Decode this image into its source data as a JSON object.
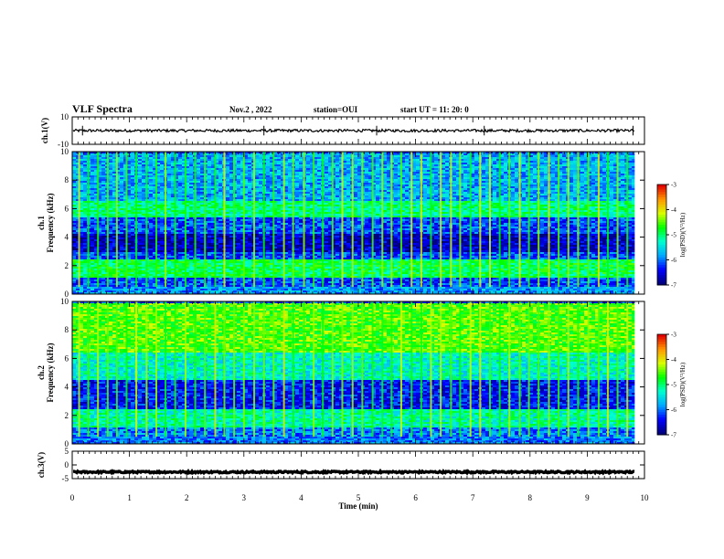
{
  "header": {
    "title": "VLF Spectra",
    "date": "Nov.2 , 2022",
    "station": "station=OUI",
    "start_ut": "start UT = 11: 20: 0"
  },
  "colors": {
    "colormap": [
      "#00007a",
      "#0000ff",
      "#00a8ff",
      "#00ffd0",
      "#00ff00",
      "#d8ff00",
      "#ff9800",
      "#e00000"
    ],
    "frame": "#000000",
    "waveform": "#000000"
  },
  "chart_data": [
    {
      "type": "line",
      "name": "ch1-waveform",
      "ylabel": "ch.1(V)",
      "ylim": [
        -10,
        10
      ],
      "yticks": [
        "10",
        "-10"
      ],
      "x_range_min": [
        0,
        9.83
      ],
      "trace_level_v": 0,
      "trace_amplitude_v": 1,
      "spike_times_min": [
        0.18,
        3.35,
        5.32,
        7.2,
        9.8
      ]
    },
    {
      "type": "heatmap",
      "name": "ch1-spectrogram",
      "ylabel": "ch.1\nFrequency (kHz)",
      "ylabel_line1": "ch.1",
      "ylabel_line2": "Frequency (kHz)",
      "ylim": [
        0,
        10
      ],
      "yticks": [
        "0",
        "2",
        "4",
        "6",
        "8",
        "10"
      ],
      "x_range_min": [
        0,
        9.83
      ],
      "bands_khz": [
        {
          "from": 0,
          "to": 0.6,
          "level": 0.28
        },
        {
          "from": 1.2,
          "to": 2.5,
          "level": 0.52
        },
        {
          "from": 3.0,
          "to": 4.3,
          "level": 0.08
        },
        {
          "from": 5.5,
          "to": 6.6,
          "level": 0.48
        },
        {
          "from": 6.6,
          "to": 10,
          "level": 0.3
        }
      ],
      "sferic_times_min": [
        0.12,
        0.28,
        0.45,
        0.62,
        0.78,
        0.95,
        1.12,
        1.3,
        1.47,
        1.63,
        1.8,
        1.98,
        2.15,
        2.32,
        2.5,
        2.66,
        2.83,
        3.0,
        3.18,
        3.35,
        3.52,
        3.7,
        3.86,
        4.05,
        4.22,
        4.38,
        4.55,
        4.72,
        4.9,
        5.07,
        5.25,
        5.42,
        5.58,
        5.75,
        5.93,
        6.1,
        6.27,
        6.44,
        6.62,
        6.78,
        6.96,
        7.13,
        7.3,
        7.47,
        7.64,
        7.82,
        7.98,
        8.15,
        8.33,
        8.5,
        8.67,
        8.84,
        9.02,
        9.2,
        9.36,
        9.53,
        9.7
      ],
      "colorbar": {
        "label": "log(PSD)(V²/Hz)",
        "min": -7,
        "max": -3,
        "ticks": [
          "-3",
          "-4",
          "-5",
          "-6",
          "-7"
        ]
      }
    },
    {
      "type": "heatmap",
      "name": "ch2-spectrogram",
      "ylabel": "ch.2\nFrequency (kHz)",
      "ylabel_line1": "ch.2",
      "ylabel_line2": "Frequency (kHz)",
      "ylim": [
        0,
        10
      ],
      "yticks": [
        "0",
        "2",
        "4",
        "6",
        "8",
        "10"
      ],
      "x_range_min": [
        0,
        9.83
      ],
      "bands_khz": [
        {
          "from": 0,
          "to": 1.2,
          "level": 0.25
        },
        {
          "from": 1.2,
          "to": 2.5,
          "level": 0.45
        },
        {
          "from": 2.5,
          "to": 4.5,
          "level": 0.15
        },
        {
          "from": 4.5,
          "to": 6.5,
          "level": 0.42
        },
        {
          "from": 6.5,
          "to": 10,
          "level": 0.62
        }
      ],
      "sferic_times_min": [
        0.12,
        0.28,
        0.45,
        0.62,
        0.78,
        0.95,
        1.12,
        1.3,
        1.47,
        1.63,
        1.8,
        1.98,
        2.15,
        2.32,
        2.5,
        2.66,
        2.83,
        3.0,
        3.18,
        3.35,
        3.52,
        3.7,
        3.86,
        4.05,
        4.22,
        4.38,
        4.55,
        4.72,
        4.9,
        5.07,
        5.25,
        5.42,
        5.58,
        5.75,
        5.93,
        6.1,
        6.27,
        6.44,
        6.62,
        6.78,
        6.96,
        7.13,
        7.3,
        7.47,
        7.64,
        7.82,
        7.98,
        8.15,
        8.33,
        8.5,
        8.67,
        8.84,
        9.02,
        9.2,
        9.36,
        9.53,
        9.7
      ],
      "colorbar": {
        "label": "log(PSD)(V²/Hz)",
        "min": -7,
        "max": -3,
        "ticks": [
          "-3",
          "-4",
          "-5",
          "-6",
          "-7"
        ]
      }
    },
    {
      "type": "line",
      "name": "ch3-waveform",
      "ylabel": "ch.3(V)",
      "ylim": [
        -5,
        5
      ],
      "yticks": [
        "5",
        "0",
        "-5"
      ],
      "x_range_min": [
        0,
        9.83
      ],
      "trace_level_v": -2.6,
      "trace_amplitude_v": 0.3
    }
  ],
  "x_axis": {
    "label": "Time (min)",
    "range": [
      0,
      10
    ],
    "ticks": [
      "0",
      "1",
      "2",
      "3",
      "4",
      "5",
      "6",
      "7",
      "8",
      "9",
      "10"
    ]
  }
}
